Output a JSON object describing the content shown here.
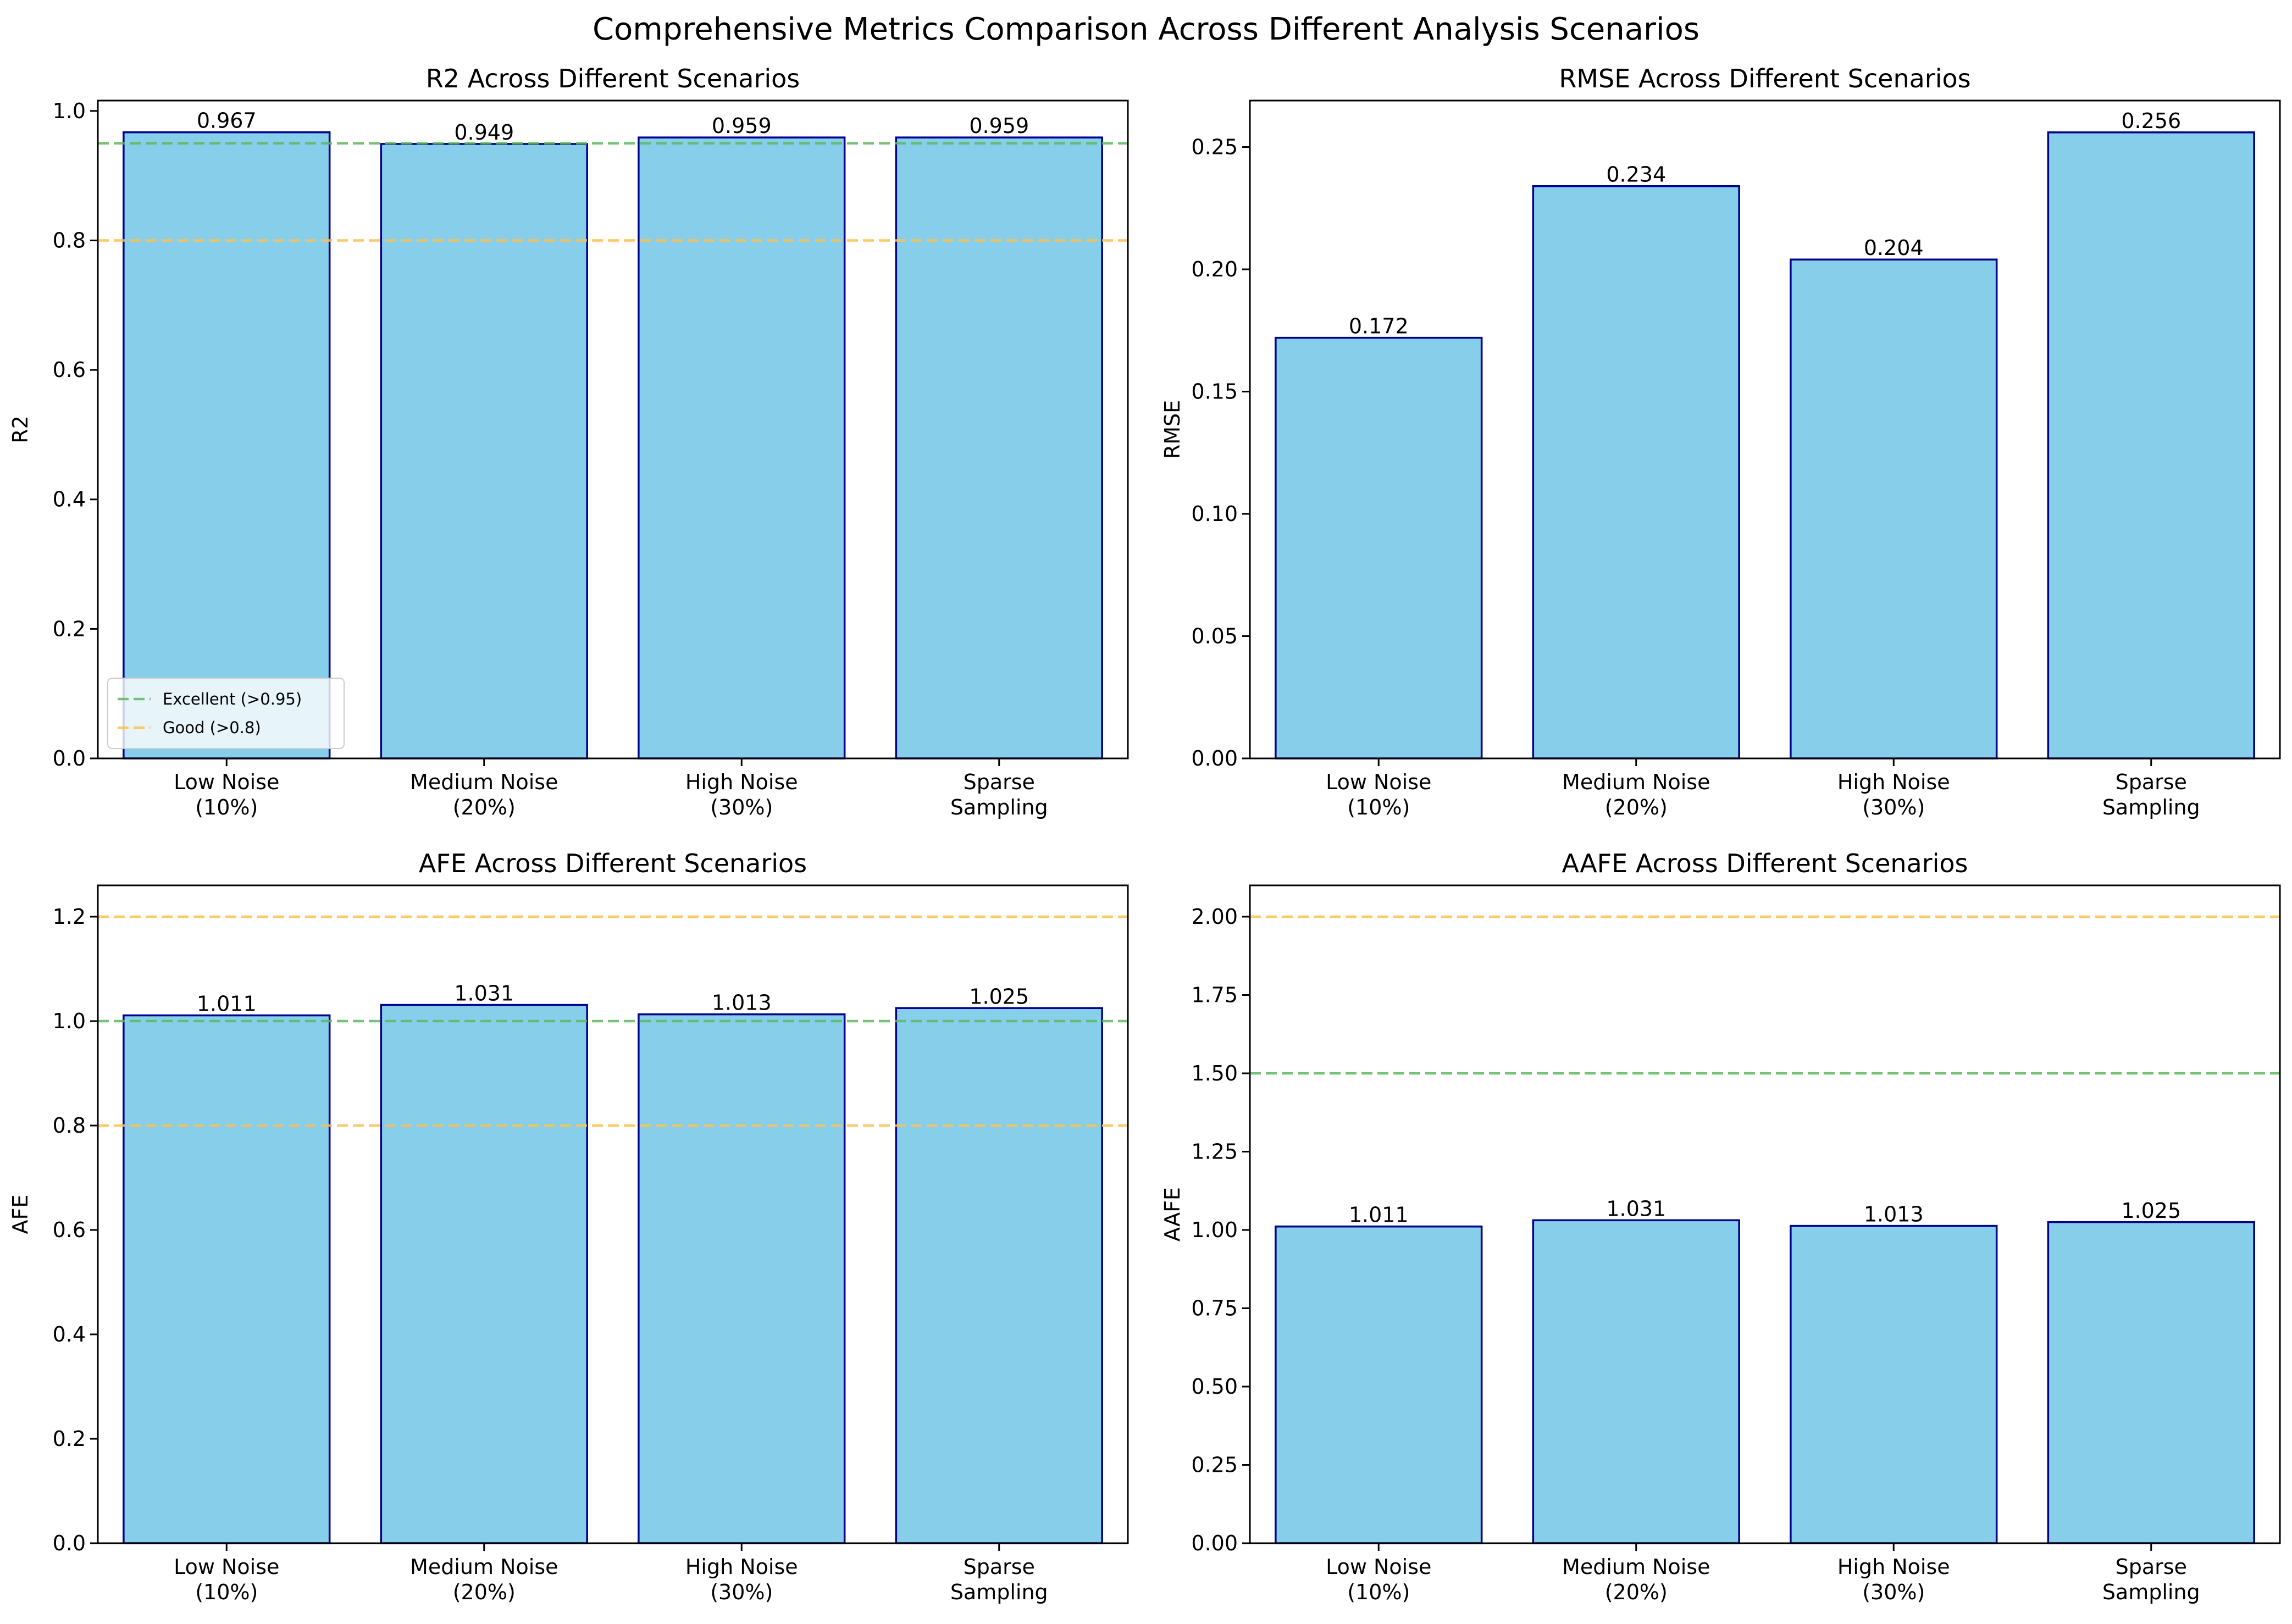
{
  "figure": {
    "title": "Comprehensive Metrics Comparison Across Different Analysis Scenarios"
  },
  "colors": {
    "bar_fill": "#87ceeb",
    "bar_edge": "#00008b",
    "excellent_line": "#5cb85c",
    "good_line": "#ffc04d"
  },
  "chart_data": [
    {
      "type": "bar",
      "title": "R2 Across Different Scenarios",
      "xlabel": "",
      "ylabel": "R2",
      "categories": [
        "Low Noise\n(10%)",
        "Medium Noise\n(20%)",
        "High Noise\n(30%)",
        "Sparse\nSampling"
      ],
      "values": [
        0.967,
        0.949,
        0.959,
        0.959
      ],
      "value_labels": [
        "0.967",
        "0.949",
        "0.959",
        "0.959"
      ],
      "ylim": [
        0,
        1.016
      ],
      "yticks": [
        0.0,
        0.2,
        0.4,
        0.6,
        0.8,
        1.0
      ],
      "ytick_labels": [
        "0.0",
        "0.2",
        "0.4",
        "0.6",
        "0.8",
        "1.0"
      ],
      "reference_lines": [
        {
          "value": 0.95,
          "color": "#5cb85c",
          "label": "Excellent (>0.95)"
        },
        {
          "value": 0.8,
          "color": "#ffc04d",
          "label": "Good (>0.8)"
        }
      ],
      "legend": "lower-left",
      "grid": false
    },
    {
      "type": "bar",
      "title": "RMSE Across Different Scenarios",
      "xlabel": "",
      "ylabel": "RMSE",
      "categories": [
        "Low Noise\n(10%)",
        "Medium Noise\n(20%)",
        "High Noise\n(30%)",
        "Sparse\nSampling"
      ],
      "values": [
        0.172,
        0.234,
        0.204,
        0.256
      ],
      "value_labels": [
        "0.172",
        "0.234",
        "0.204",
        "0.256"
      ],
      "ylim": [
        0,
        0.269
      ],
      "yticks": [
        0.0,
        0.05,
        0.1,
        0.15,
        0.2,
        0.25
      ],
      "ytick_labels": [
        "0.00",
        "0.05",
        "0.10",
        "0.15",
        "0.20",
        "0.25"
      ],
      "reference_lines": [],
      "legend": "none",
      "grid": false
    },
    {
      "type": "bar",
      "title": "AFE Across Different Scenarios",
      "xlabel": "",
      "ylabel": "AFE",
      "categories": [
        "Low Noise\n(10%)",
        "Medium Noise\n(20%)",
        "High Noise\n(30%)",
        "Sparse\nSampling"
      ],
      "values": [
        1.011,
        1.031,
        1.013,
        1.025
      ],
      "value_labels": [
        "1.011",
        "1.031",
        "1.013",
        "1.025"
      ],
      "ylim": [
        0,
        1.26
      ],
      "yticks": [
        0.0,
        0.2,
        0.4,
        0.6,
        0.8,
        1.0,
        1.2
      ],
      "ytick_labels": [
        "0.0",
        "0.2",
        "0.4",
        "0.6",
        "0.8",
        "1.0",
        "1.2"
      ],
      "reference_lines": [
        {
          "value": 1.2,
          "color": "#ffc04d"
        },
        {
          "value": 1.0,
          "color": "#5cb85c"
        },
        {
          "value": 0.8,
          "color": "#ffc04d"
        }
      ],
      "legend": "none",
      "grid": false
    },
    {
      "type": "bar",
      "title": "AAFE Across Different Scenarios",
      "xlabel": "",
      "ylabel": "AAFE",
      "categories": [
        "Low Noise\n(10%)",
        "Medium Noise\n(20%)",
        "High Noise\n(30%)",
        "Sparse\nSampling"
      ],
      "values": [
        1.011,
        1.031,
        1.013,
        1.025
      ],
      "value_labels": [
        "1.011",
        "1.031",
        "1.013",
        "1.025"
      ],
      "ylim": [
        0,
        2.1
      ],
      "yticks": [
        0.0,
        0.25,
        0.5,
        0.75,
        1.0,
        1.25,
        1.5,
        1.75,
        2.0
      ],
      "ytick_labels": [
        "0.00",
        "0.25",
        "0.50",
        "0.75",
        "1.00",
        "1.25",
        "1.50",
        "1.75",
        "2.00"
      ],
      "reference_lines": [
        {
          "value": 2.0,
          "color": "#ffc04d"
        },
        {
          "value": 1.5,
          "color": "#5cb85c"
        }
      ],
      "legend": "none",
      "grid": false
    }
  ]
}
